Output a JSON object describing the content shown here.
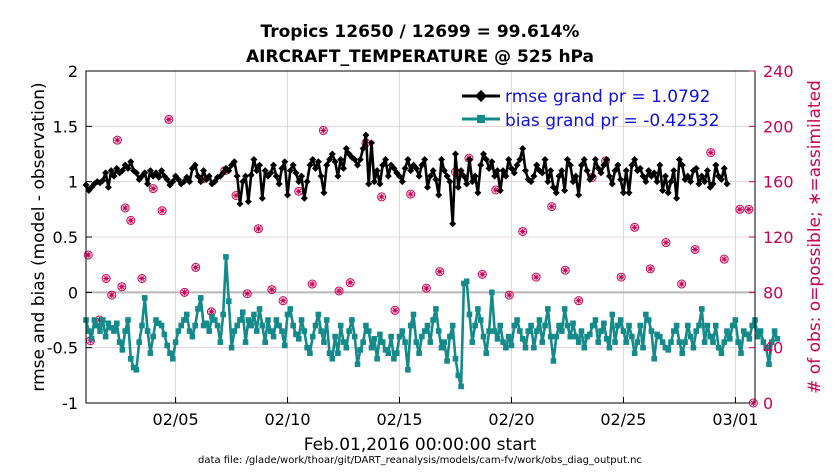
{
  "chart_data": {
    "type": "line",
    "title_line1": "Tropics 12650 / 12699 = 99.614%",
    "title_line2": "AIRCRAFT_TEMPERATURE @ 525 hPa",
    "xlabel": "Feb.01,2016 00:00:00 start",
    "ylabel_left": "rmse and bias (model - observation)",
    "ylabel_right": "# of obs: o=possible; ∗=assimilated",
    "footer": "data file: /glade/work/thoar/git/DART_reanalysis/models/cam-fv/work/obs_diag_output.nc",
    "xlim": [
      1,
      30.875
    ],
    "ylim_left": [
      -1,
      2
    ],
    "ylim_right": [
      0,
      240
    ],
    "x_ticks": [
      {
        "value": 5,
        "label": "02/05"
      },
      {
        "value": 10,
        "label": "02/10"
      },
      {
        "value": 15,
        "label": "02/15"
      },
      {
        "value": 20,
        "label": "02/20"
      },
      {
        "value": 25,
        "label": "02/25"
      },
      {
        "value": 30,
        "label": "03/01"
      }
    ],
    "y_ticks_left": [
      {
        "value": -1,
        "label": "-1"
      },
      {
        "value": -0.5,
        "label": "-0.5"
      },
      {
        "value": 0,
        "label": "0"
      },
      {
        "value": 0.5,
        "label": "0.5"
      },
      {
        "value": 1,
        "label": "1"
      },
      {
        "value": 1.5,
        "label": "1.5"
      },
      {
        "value": 2,
        "label": "2"
      }
    ],
    "y_ticks_right": [
      {
        "value": 0,
        "label": "0"
      },
      {
        "value": 40,
        "label": "40"
      },
      {
        "value": 80,
        "label": "80"
      },
      {
        "value": 120,
        "label": "120"
      },
      {
        "value": 160,
        "label": "160"
      },
      {
        "value": 200,
        "label": "200"
      },
      {
        "value": 240,
        "label": "240"
      }
    ],
    "x_start": 1,
    "x_step": 0.125,
    "series": [
      {
        "name": "rmse",
        "legend_label": "rmse grand pr = 1.0792",
        "color": "#000000",
        "marker": "diamond",
        "values": [
          0.97,
          0.92,
          0.95,
          0.98,
          1.0,
          0.99,
          1.01,
          1.08,
          0.95,
          1.1,
          1.05,
          1.12,
          1.08,
          1.1,
          1.15,
          1.12,
          1.18,
          1.1,
          1.08,
          1.02,
          1.05,
          1.08,
          0.98,
          1.1,
          1.05,
          1.08,
          1.04,
          1.1,
          1.05,
          1.02,
          0.97,
          1.0,
          1.05,
          1.02,
          0.98,
          1.0,
          1.04,
          1.0,
          1.12,
          1.15,
          1.05,
          1.0,
          1.1,
          1.02,
          1.05,
          0.98,
          1.0,
          1.04,
          1.05,
          1.08,
          1.12,
          1.1,
          1.15,
          1.18,
          1.05,
          0.8,
          1.0,
          1.05,
          0.82,
          1.06,
          1.2,
          1.1,
          1.15,
          0.85,
          1.1,
          1.05,
          1.08,
          1.15,
          1.05,
          0.98,
          1.12,
          1.18,
          0.88,
          1.1,
          1.15,
          1.08,
          1.0,
          1.05,
          0.85,
          1.0,
          1.15,
          1.2,
          1.12,
          1.18,
          1.05,
          0.9,
          1.15,
          1.2,
          1.25,
          1.18,
          1.05,
          1.2,
          1.12,
          1.3,
          1.25,
          1.22,
          1.2,
          1.15,
          1.2,
          1.3,
          1.42,
          0.98,
          1.35,
          1.0,
          1.1,
          0.98,
          1.15,
          1.2,
          1.05,
          1.15,
          1.12,
          1.08,
          1.05,
          1.0,
          1.12,
          1.2,
          1.1,
          1.15,
          1.12,
          1.05,
          1.15,
          1.2,
          0.95,
          1.05,
          1.1,
          1.02,
          0.88,
          1.2,
          1.1,
          1.05,
          1.0,
          0.62,
          1.25,
          0.95,
          1.1,
          1.05,
          0.98,
          1.2,
          1.0,
          1.05,
          0.9,
          1.15,
          1.25,
          1.2,
          1.12,
          1.18,
          1.05,
          1.1,
          0.92,
          1.1,
          1.05,
          1.2,
          1.12,
          1.08,
          1.15,
          1.2,
          1.3,
          1.1,
          1.02,
          1.0,
          1.05,
          1.15,
          1.1,
          1.08,
          1.2,
          1.0,
          1.1,
          0.95,
          0.9,
          1.05,
          1.1,
          0.92,
          1.2,
          1.15,
          1.0,
          1.05,
          0.88,
          1.15,
          1.2,
          1.1,
          1.02,
          1.05,
          1.2,
          1.12,
          1.08,
          1.15,
          1.2,
          1.05,
          0.98,
          1.1,
          1.15,
          1.02,
          0.9,
          1.1,
          0.9,
          1.15,
          1.2,
          1.1,
          1.12,
          1.05,
          1.0,
          1.1,
          1.05,
          1.08,
          1.0,
          1.15,
          0.92,
          1.05,
          0.9,
          1.0,
          1.1,
          0.85,
          1.2,
          1.15,
          1.02,
          1.05,
          1.0,
          1.1,
          1.12,
          0.98,
          1.05,
          1.0,
          1.1,
          0.95,
          0.98,
          1.15,
          1.05,
          1.02,
          1.12,
          0.98
        ]
      },
      {
        "name": "bias",
        "legend_label": "bias grand pr = -0.42532",
        "color": "#148a8a",
        "marker": "square",
        "values": [
          -0.25,
          -0.35,
          -0.42,
          -0.25,
          -0.3,
          -0.35,
          -0.25,
          -0.4,
          -0.28,
          -0.32,
          -0.35,
          -0.28,
          -0.45,
          -0.52,
          -0.35,
          -0.25,
          -0.6,
          -0.68,
          -0.7,
          -0.45,
          -0.3,
          -0.05,
          -0.35,
          -0.55,
          -0.4,
          -0.25,
          -0.28,
          -0.3,
          -0.38,
          -0.48,
          -0.55,
          -0.6,
          -0.45,
          -0.35,
          -0.3,
          -0.25,
          -0.2,
          -0.35,
          -0.4,
          -0.3,
          -0.15,
          -0.05,
          -0.3,
          -0.28,
          -0.35,
          -0.22,
          -0.25,
          -0.3,
          -0.45,
          -0.2,
          0.32,
          -0.08,
          -0.5,
          -0.35,
          -0.3,
          -0.25,
          -0.18,
          -0.45,
          -0.25,
          -0.3,
          -0.2,
          -0.35,
          -0.15,
          -0.3,
          -0.45,
          -0.25,
          -0.35,
          -0.4,
          -0.25,
          -0.3,
          -0.35,
          -0.48,
          -0.2,
          -0.15,
          -0.3,
          -0.38,
          -0.42,
          -0.25,
          -0.35,
          -0.5,
          -0.55,
          -0.4,
          -0.3,
          -0.2,
          -0.35,
          -0.45,
          -0.25,
          -0.55,
          -0.6,
          -0.4,
          -0.55,
          -0.3,
          -0.45,
          -0.5,
          -0.35,
          -0.25,
          -0.4,
          -0.65,
          -0.52,
          -0.45,
          -0.3,
          -0.35,
          -0.5,
          -0.42,
          -0.6,
          -0.38,
          -0.45,
          -0.52,
          -0.55,
          -0.4,
          -0.6,
          -0.55,
          -0.4,
          -0.35,
          -0.45,
          -0.7,
          -0.3,
          -0.2,
          -0.45,
          -0.55,
          -0.4,
          -0.35,
          -0.3,
          -0.45,
          -0.25,
          -0.15,
          -0.35,
          -0.5,
          -0.45,
          -0.62,
          -0.4,
          -0.3,
          -0.6,
          -0.75,
          -0.85,
          0.08,
          0.1,
          -0.2,
          -0.45,
          -0.3,
          -0.15,
          -0.25,
          -0.4,
          -0.55,
          -0.35,
          0.0,
          -0.35,
          -0.42,
          -0.3,
          -0.45,
          -0.5,
          -0.4,
          -0.48,
          -0.3,
          -0.25,
          -0.35,
          -0.42,
          -0.5,
          -0.35,
          -0.3,
          -0.5,
          -0.35,
          -0.25,
          -0.45,
          -0.3,
          -0.15,
          -0.4,
          -0.62,
          -0.4,
          -0.3,
          -0.35,
          -0.15,
          -0.3,
          -0.4,
          -0.28,
          -0.4,
          -0.45,
          -0.35,
          -0.5,
          -0.4,
          -0.38,
          -0.3,
          -0.25,
          -0.45,
          -0.35,
          -0.28,
          -0.42,
          -0.5,
          -0.2,
          -0.45,
          -0.3,
          -0.25,
          -0.35,
          -0.45,
          -0.3,
          -0.4,
          -0.55,
          -0.45,
          -0.3,
          -0.5,
          -0.2,
          -0.25,
          -0.35,
          -0.6,
          -0.38,
          -0.4,
          -0.45,
          -0.5,
          -0.52,
          -0.45,
          -0.35,
          -0.3,
          -0.45,
          -0.55,
          -0.45,
          -0.3,
          -0.4,
          -0.5,
          -0.35,
          -0.3,
          -0.15,
          -0.45,
          -0.3,
          -0.4,
          -0.45,
          -0.3,
          -0.5,
          -0.55,
          -0.45,
          -0.35,
          -0.42,
          -0.3,
          -0.25,
          -0.45,
          -0.55,
          -0.35,
          -0.38,
          -0.42,
          -0.3,
          -0.25,
          -0.4,
          -0.35,
          -0.45,
          -0.5,
          -0.65,
          -0.45,
          -0.35,
          -0.42
        ]
      }
    ],
    "obs_counts": {
      "color": "#cc0055",
      "x": [
        1.1,
        1.2,
        1.6,
        1.9,
        2.15,
        2.4,
        2.6,
        2.75,
        3.0,
        3.5,
        4.0,
        4.4,
        4.7,
        5.4,
        5.9,
        6.2,
        6.6,
        7.2,
        7.7,
        8.2,
        8.7,
        9.3,
        9.8,
        10.5,
        11.1,
        11.6,
        12.3,
        12.8,
        13.5,
        14.2,
        14.8,
        15.5,
        16.2,
        16.8,
        17.5,
        18.1,
        18.7,
        19.3,
        19.9,
        20.5,
        21.1,
        21.8,
        22.4,
        23.0,
        23.6,
        24.2,
        24.9,
        25.5,
        26.2,
        26.9,
        27.6,
        28.2,
        28.9,
        29.5,
        30.2,
        30.6,
        30.8
      ],
      "y": [
        107,
        45,
        60,
        90,
        78,
        190,
        84,
        141,
        132,
        90,
        155,
        139,
        205,
        80,
        98,
        162,
        66,
        168,
        150,
        79,
        126,
        82,
        74,
        153,
        86,
        197,
        81,
        87,
        188,
        149,
        67,
        151,
        83,
        95,
        167,
        177,
        93,
        154,
        78,
        124,
        91,
        142,
        96,
        74,
        163,
        175,
        91,
        127,
        97,
        116,
        86,
        111,
        181,
        104,
        140,
        140,
        0
      ]
    }
  }
}
